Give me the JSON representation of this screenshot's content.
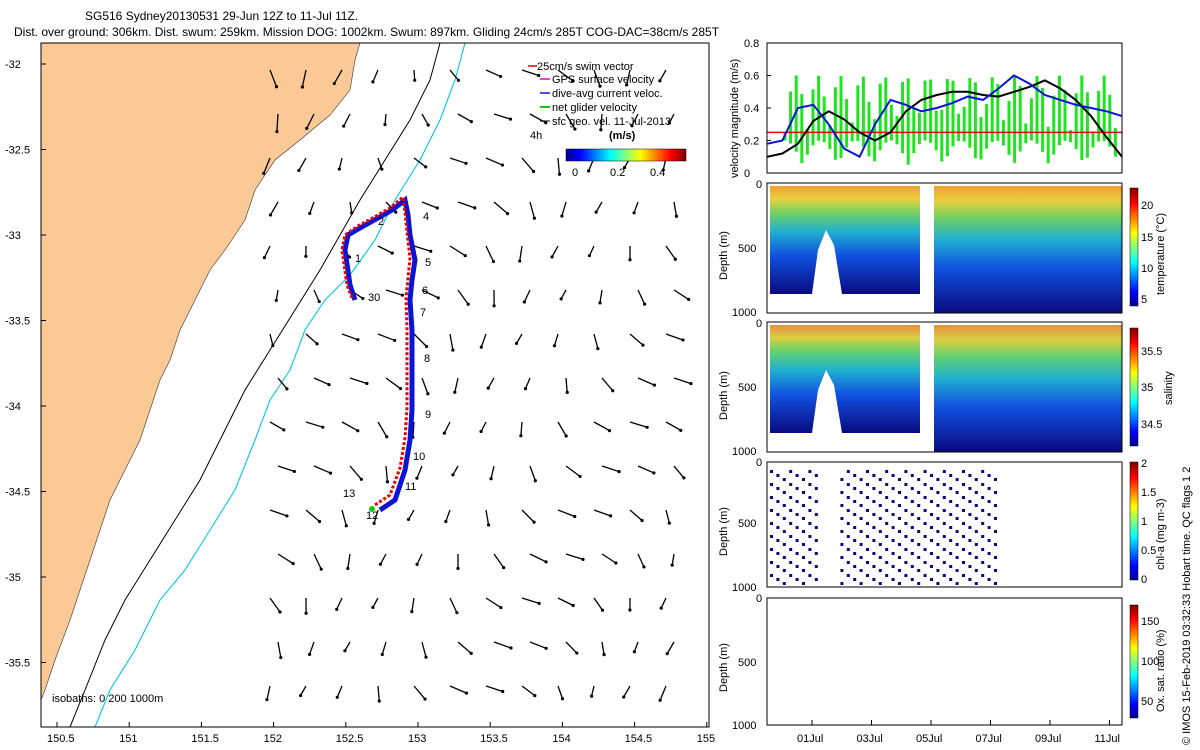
{
  "header": {
    "line1": "SG516 Sydney20130531 29-Jun 12Z to 11-Jul 11Z.",
    "line2": "Dist. over ground: 306km. Dist. swum: 259km. Mission DOG: 1002km. Swum: 897km. Gliding 24cm/s 285T COG-DAC=38cm/s 285T"
  },
  "map": {
    "x_ticks": [
      "150.5",
      "151",
      "151.5",
      "152",
      "152.5",
      "153",
      "153.5",
      "154",
      "154.5",
      "155"
    ],
    "y_ticks": [
      "-32",
      "-32.5",
      "-33",
      "-33.5",
      "-34",
      "-34.5",
      "-35",
      "-35.5"
    ],
    "legend": [
      "25cm/s swim vector",
      "GPS surface velocity",
      "dive-avg current veloc.",
      "net glider velocity",
      "sfc geo. vel. 11-Jul-2013"
    ],
    "legend_extra": "4h",
    "colorbar": {
      "title": "(m/s)",
      "ticks": [
        "0",
        "0.2",
        "0.4"
      ]
    },
    "isobaths": "isobaths: 0   200  1000m",
    "day_labels": [
      "1",
      "2",
      "4",
      "5",
      "6",
      "7",
      "8",
      "9",
      "10",
      "11",
      "12",
      "13",
      "30"
    ],
    "colors": {
      "land": "#fbc996",
      "isobath200": "#000000",
      "isobath1000": "#00c8e6",
      "track_red": "#e60000",
      "track_blue": "#0a14d2",
      "track_green": "#14c814"
    }
  },
  "chart_data": [
    {
      "type": "line",
      "title": "velocity magnitude",
      "ylabel": "velocity magnitude (m/s)",
      "ylim": [
        0,
        0.8
      ],
      "yticks": [
        "0",
        "0.2",
        "0.4",
        "0.6",
        "0.8"
      ],
      "threshold": 0.25,
      "series": [
        {
          "name": "black",
          "color": "#000000",
          "values": [
            0.1,
            0.12,
            0.18,
            0.32,
            0.38,
            0.33,
            0.25,
            0.2,
            0.25,
            0.38,
            0.45,
            0.48,
            0.5,
            0.5,
            0.48,
            0.47,
            0.5,
            0.53,
            0.57,
            0.52,
            0.45,
            0.35,
            0.22,
            0.1
          ]
        },
        {
          "name": "blue",
          "color": "#0a14d2",
          "values": [
            0.18,
            0.2,
            0.4,
            0.42,
            0.3,
            0.15,
            0.1,
            0.3,
            0.45,
            0.42,
            0.38,
            0.4,
            0.43,
            0.47,
            0.45,
            0.52,
            0.6,
            0.55,
            0.48,
            0.45,
            0.42,
            0.4,
            0.38,
            0.35
          ]
        }
      ]
    },
    {
      "type": "heatmap",
      "ylabel": "Depth (m)",
      "ylim": [
        0,
        1000
      ],
      "yticks": [
        "0",
        "500",
        "1000"
      ],
      "colorbar_label": "temperature (°C)",
      "colorbar_ticks": [
        "5",
        "10",
        "15",
        "20"
      ]
    },
    {
      "type": "heatmap",
      "ylabel": "Depth (m)",
      "ylim": [
        0,
        1000
      ],
      "yticks": [
        "0",
        "500",
        "1000"
      ],
      "colorbar_label": "salinity",
      "colorbar_ticks": [
        "34.5",
        "35",
        "35.5"
      ]
    },
    {
      "type": "scatter",
      "ylabel": "Depth (m)",
      "ylim": [
        0,
        1000
      ],
      "yticks": [
        "0",
        "500",
        "1000"
      ],
      "colorbar_label": "chl-a (mg m-3)",
      "colorbar_ticks": [
        "0",
        "0.5",
        "1",
        "1.5",
        "2"
      ]
    },
    {
      "type": "heatmap",
      "ylabel": "Depth (m)",
      "ylim": [
        0,
        1000
      ],
      "yticks": [
        "0",
        "500",
        "1000"
      ],
      "colorbar_label": "Ox. sat. ratio (%)",
      "colorbar_ticks": [
        "50",
        "100",
        "150"
      ],
      "xticks": [
        "01Jul",
        "03Jul",
        "05Jul",
        "07Jul",
        "09Jul",
        "11Jul"
      ]
    }
  ],
  "footer": {
    "credit": "© IMOS 15-Feb-2019 03:32:33 Hobart time. QC flags 1  2"
  }
}
